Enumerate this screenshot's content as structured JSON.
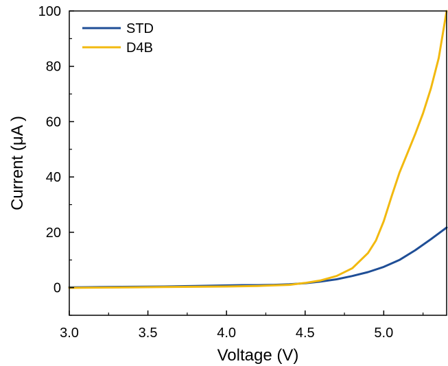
{
  "chart_data": {
    "type": "line",
    "title": "",
    "xlabel": "Voltage (V)",
    "ylabel": "Current (μA )",
    "xlim": [
      3.0,
      5.4
    ],
    "ylim": [
      -10,
      100
    ],
    "x_ticks": [
      3.0,
      3.5,
      4.0,
      4.5,
      5.0
    ],
    "x_tick_labels": [
      "3.0",
      "3.5",
      "4.0",
      "4.5",
      "5.0"
    ],
    "y_ticks": [
      0,
      20,
      40,
      60,
      80,
      100
    ],
    "y_tick_labels": [
      "0",
      "20",
      "40",
      "60",
      "80",
      "100"
    ],
    "grid": false,
    "legend_position": "top-left",
    "series": [
      {
        "name": "STD",
        "color": "#1f4e96",
        "x": [
          3.0,
          3.2,
          3.4,
          3.6,
          3.8,
          4.0,
          4.1,
          4.2,
          4.3,
          4.4,
          4.5,
          4.6,
          4.7,
          4.8,
          4.9,
          5.0,
          5.1,
          5.2,
          5.3,
          5.4
        ],
        "y": [
          0.1,
          0.2,
          0.3,
          0.4,
          0.6,
          0.8,
          0.9,
          0.9,
          1.0,
          1.2,
          1.6,
          2.2,
          3.0,
          4.2,
          5.6,
          7.5,
          10.0,
          13.5,
          17.5,
          21.7
        ]
      },
      {
        "name": "D4B",
        "color": "#f2b90f",
        "x": [
          3.0,
          3.2,
          3.4,
          3.6,
          3.8,
          4.0,
          4.2,
          4.4,
          4.5,
          4.6,
          4.7,
          4.8,
          4.9,
          4.95,
          5.0,
          5.05,
          5.1,
          5.15,
          5.2,
          5.25,
          5.3,
          5.35,
          5.4
        ],
        "y": [
          -0.1,
          0.0,
          0.1,
          0.2,
          0.3,
          0.4,
          0.6,
          1.0,
          1.7,
          2.6,
          4.2,
          7.0,
          12.5,
          17.0,
          24.0,
          33.0,
          41.5,
          48.5,
          55.5,
          63.0,
          72.0,
          83.0,
          100.0
        ]
      }
    ]
  }
}
